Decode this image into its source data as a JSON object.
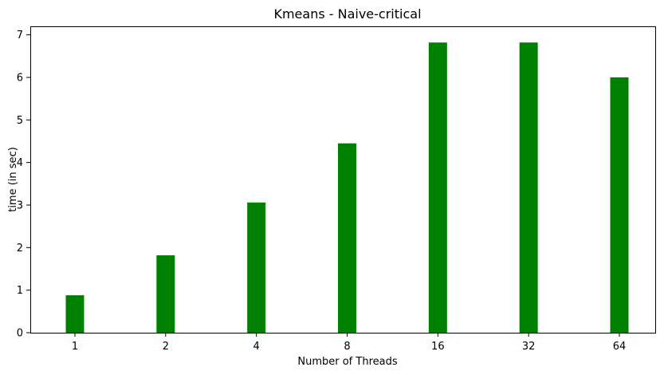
{
  "chart_data": {
    "type": "bar",
    "title": "Kmeans - Naive-critical",
    "xlabel": "Number of Threads",
    "ylabel": "time (in sec)",
    "categories": [
      "1",
      "2",
      "4",
      "8",
      "16",
      "32",
      "64"
    ],
    "values": [
      0.88,
      1.82,
      3.06,
      4.45,
      6.82,
      6.82,
      6.0
    ],
    "ylim": [
      0,
      7.2
    ],
    "yticks": [
      "0",
      "1",
      "2",
      "3",
      "4",
      "5",
      "6",
      "7"
    ],
    "bar_color": "#008000",
    "grid": false
  }
}
